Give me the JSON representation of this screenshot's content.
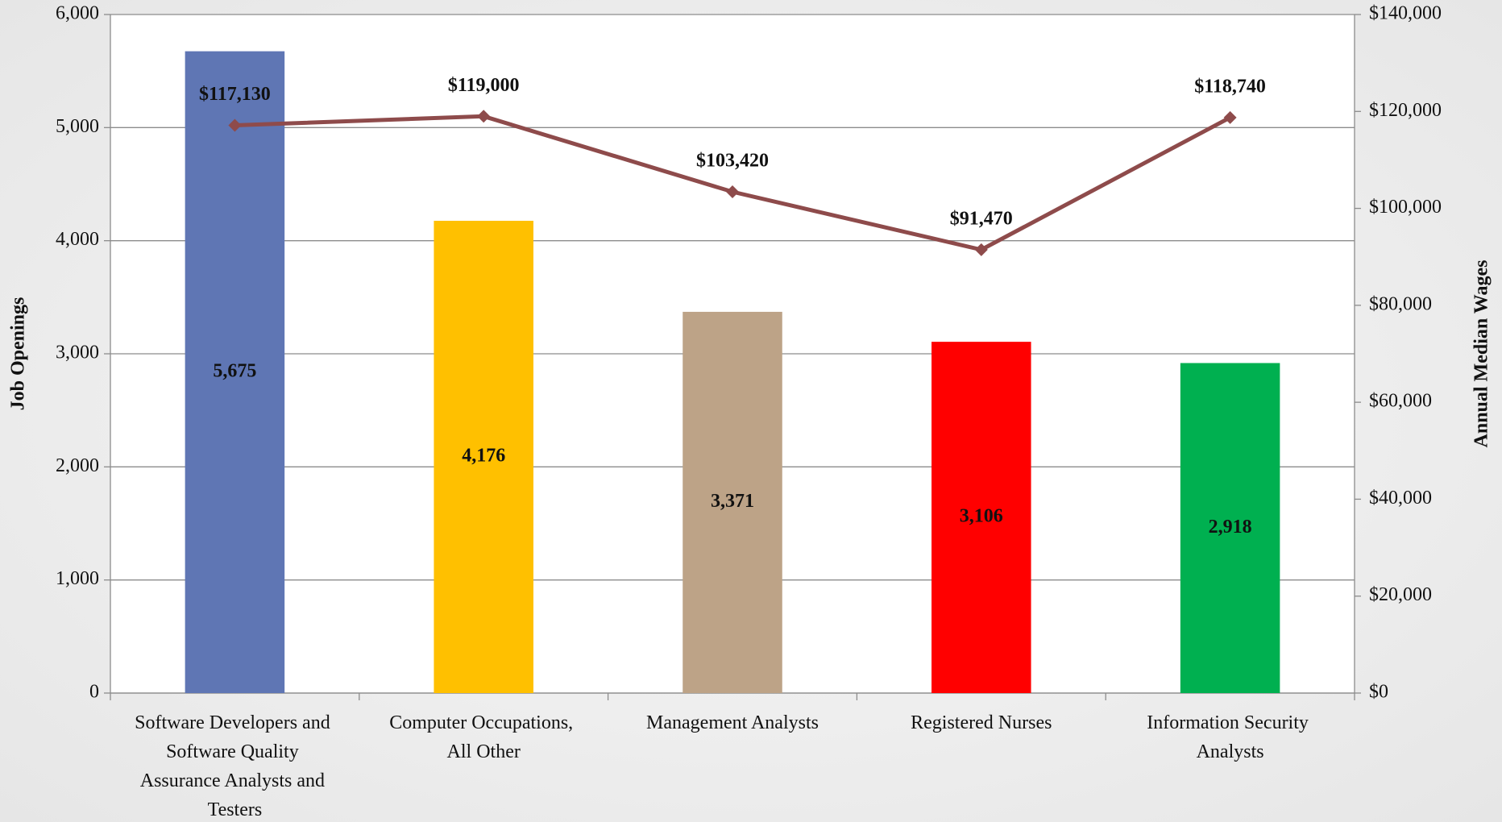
{
  "chart_data": {
    "type": "bar",
    "categories": [
      "Software Developers and Software Quality Assurance Analysts and Testers",
      "Computer Occupations, All Other",
      "Management Analysts",
      "Registered Nurses",
      "Information Security Analysts"
    ],
    "series": [
      {
        "type": "bar",
        "colors": [
          "#5f76b4",
          "#ffc000",
          "#bda387",
          "#ff0000",
          "#00b050"
        ],
        "values": [
          5675,
          4176,
          3371,
          3106,
          2918
        ],
        "value_labels": [
          "5,675",
          "4,176",
          "3,371",
          "3,106",
          "2,918"
        ]
      },
      {
        "type": "line",
        "axis": "y2",
        "color": "#8e4b4b",
        "values": [
          117130,
          119000,
          103420,
          91470,
          118740
        ],
        "value_labels": [
          "$117,130",
          "$119,000",
          "$103,420",
          "$91,470",
          "$118,740"
        ]
      }
    ],
    "ylabel": "Job Openings",
    "y2label": "Annual Median Wages",
    "ylim": [
      0,
      6000
    ],
    "yticks": [
      0,
      {
        "value": 1000,
        "label": "1,000"
      },
      {
        "value": 2000,
        "label": "2,000"
      },
      {
        "value": 3000,
        "label": "3,000"
      },
      {
        "value": 4000,
        "label": "4,000"
      },
      {
        "value": 5000,
        "label": "5,000"
      },
      {
        "value": 6000,
        "label": "6,000"
      }
    ],
    "y2lim": [
      0,
      140000
    ],
    "y2ticks": [
      {
        "value": 0,
        "label": "$0"
      },
      {
        "value": 20000,
        "label": "$20,000"
      },
      {
        "value": 40000,
        "label": "$40,000"
      },
      {
        "value": 60000,
        "label": "$60,000"
      },
      {
        "value": 80000,
        "label": "$80,000"
      },
      {
        "value": 100000,
        "label": "$100,000"
      },
      {
        "value": 120000,
        "label": "$120,000"
      },
      {
        "value": 140000,
        "label": "$140,000"
      }
    ],
    "grid": true
  }
}
